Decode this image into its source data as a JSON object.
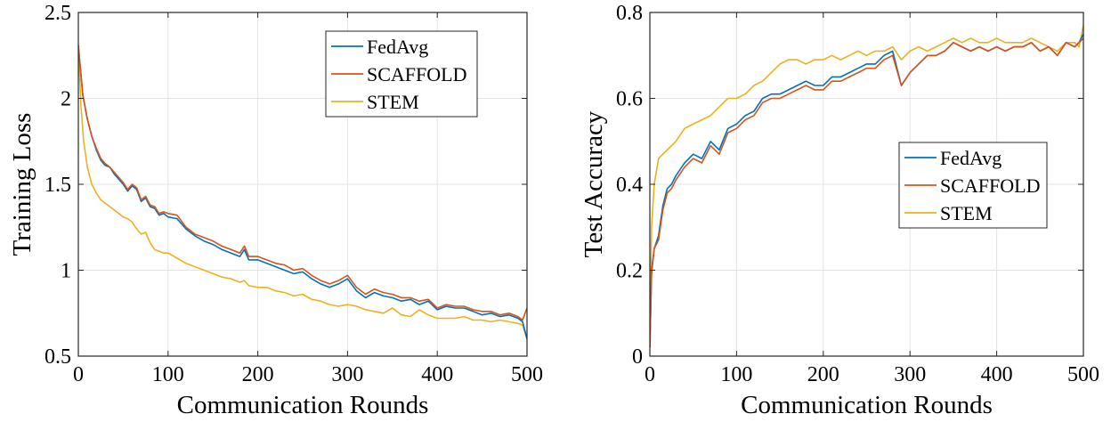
{
  "chart_data": [
    {
      "type": "line",
      "title": "",
      "xlabel": "Communication Rounds",
      "ylabel": "Training Loss",
      "xlim": [
        0,
        500
      ],
      "ylim": [
        0.5,
        2.5
      ],
      "xticks": [
        0,
        100,
        200,
        300,
        400,
        500
      ],
      "yticks": [
        0.5,
        1,
        1.5,
        2,
        2.5
      ],
      "xtick_labels": [
        "0",
        "100",
        "200",
        "300",
        "400",
        "500"
      ],
      "ytick_labels": [
        "0.5",
        "1",
        "1.5",
        "2",
        "2.5"
      ],
      "grid": true,
      "legend_position": "top-right",
      "series": [
        {
          "name": "FedAvg",
          "color": "#0072BD",
          "x": [
            0,
            5,
            10,
            15,
            20,
            25,
            30,
            35,
            40,
            45,
            50,
            55,
            60,
            65,
            70,
            75,
            80,
            85,
            90,
            95,
            100,
            110,
            120,
            130,
            140,
            150,
            160,
            170,
            180,
            185,
            190,
            200,
            210,
            220,
            230,
            240,
            250,
            260,
            270,
            280,
            290,
            300,
            310,
            320,
            330,
            340,
            350,
            360,
            370,
            380,
            390,
            400,
            410,
            420,
            430,
            440,
            450,
            460,
            470,
            480,
            490,
            495,
            500
          ],
          "values": [
            2.3,
            2.02,
            1.88,
            1.78,
            1.7,
            1.64,
            1.61,
            1.6,
            1.56,
            1.53,
            1.5,
            1.46,
            1.49,
            1.47,
            1.4,
            1.42,
            1.37,
            1.36,
            1.32,
            1.33,
            1.31,
            1.3,
            1.24,
            1.2,
            1.17,
            1.15,
            1.12,
            1.1,
            1.08,
            1.12,
            1.06,
            1.06,
            1.04,
            1.02,
            1.0,
            0.98,
            0.99,
            0.95,
            0.92,
            0.9,
            0.92,
            0.95,
            0.88,
            0.84,
            0.87,
            0.85,
            0.84,
            0.82,
            0.83,
            0.8,
            0.82,
            0.77,
            0.79,
            0.78,
            0.78,
            0.76,
            0.74,
            0.75,
            0.73,
            0.74,
            0.72,
            0.7,
            0.6
          ]
        },
        {
          "name": "SCAFFOLD",
          "color": "#D95319",
          "x": [
            0,
            5,
            10,
            15,
            20,
            25,
            30,
            35,
            40,
            45,
            50,
            55,
            60,
            65,
            70,
            75,
            80,
            85,
            90,
            95,
            100,
            110,
            120,
            130,
            140,
            150,
            160,
            170,
            180,
            185,
            190,
            200,
            210,
            220,
            230,
            240,
            250,
            260,
            270,
            280,
            290,
            300,
            310,
            320,
            330,
            340,
            350,
            360,
            370,
            380,
            390,
            400,
            410,
            420,
            430,
            440,
            450,
            460,
            470,
            480,
            490,
            495,
            500
          ],
          "values": [
            2.31,
            2.02,
            1.88,
            1.78,
            1.71,
            1.65,
            1.62,
            1.6,
            1.57,
            1.54,
            1.51,
            1.47,
            1.5,
            1.48,
            1.41,
            1.43,
            1.38,
            1.37,
            1.33,
            1.34,
            1.33,
            1.32,
            1.25,
            1.21,
            1.19,
            1.17,
            1.14,
            1.12,
            1.1,
            1.14,
            1.08,
            1.08,
            1.06,
            1.04,
            1.03,
            1.0,
            1.01,
            0.97,
            0.94,
            0.92,
            0.94,
            0.97,
            0.9,
            0.86,
            0.89,
            0.87,
            0.86,
            0.84,
            0.84,
            0.82,
            0.83,
            0.78,
            0.8,
            0.79,
            0.79,
            0.77,
            0.76,
            0.76,
            0.74,
            0.75,
            0.73,
            0.71,
            0.78
          ]
        },
        {
          "name": "STEM",
          "color": "#EDB120",
          "x": [
            0,
            3,
            6,
            10,
            15,
            20,
            25,
            30,
            35,
            40,
            45,
            50,
            55,
            60,
            65,
            70,
            75,
            80,
            85,
            90,
            95,
            100,
            110,
            120,
            130,
            140,
            150,
            160,
            170,
            180,
            185,
            190,
            200,
            210,
            220,
            230,
            240,
            250,
            260,
            270,
            280,
            290,
            300,
            310,
            320,
            330,
            340,
            350,
            360,
            370,
            380,
            390,
            400,
            410,
            420,
            430,
            440,
            450,
            460,
            470,
            480,
            490,
            495,
            500
          ],
          "values": [
            2.3,
            1.95,
            1.75,
            1.6,
            1.5,
            1.45,
            1.41,
            1.39,
            1.37,
            1.35,
            1.33,
            1.31,
            1.3,
            1.28,
            1.24,
            1.21,
            1.22,
            1.16,
            1.12,
            1.11,
            1.1,
            1.1,
            1.07,
            1.04,
            1.02,
            1.0,
            0.98,
            0.96,
            0.95,
            0.93,
            0.94,
            0.91,
            0.9,
            0.9,
            0.88,
            0.87,
            0.85,
            0.86,
            0.83,
            0.82,
            0.8,
            0.79,
            0.8,
            0.79,
            0.77,
            0.76,
            0.75,
            0.78,
            0.74,
            0.73,
            0.77,
            0.74,
            0.72,
            0.72,
            0.72,
            0.73,
            0.71,
            0.71,
            0.7,
            0.71,
            0.7,
            0.69,
            0.68,
            0.6
          ]
        }
      ]
    },
    {
      "type": "line",
      "title": "",
      "xlabel": "Communication Rounds",
      "ylabel": "Test Accuracy",
      "xlim": [
        0,
        500
      ],
      "ylim": [
        0,
        0.8
      ],
      "xticks": [
        0,
        100,
        200,
        300,
        400,
        500
      ],
      "yticks": [
        0,
        0.2,
        0.4,
        0.6,
        0.8
      ],
      "xtick_labels": [
        "0",
        "100",
        "200",
        "300",
        "400",
        "500"
      ],
      "ytick_labels": [
        "0",
        "0.2",
        "0.4",
        "0.6",
        "0.8"
      ],
      "grid": true,
      "legend_position": "center-right",
      "series": [
        {
          "name": "FedAvg",
          "color": "#0072BD",
          "x": [
            0,
            2,
            5,
            10,
            15,
            20,
            25,
            30,
            40,
            50,
            60,
            70,
            80,
            90,
            100,
            110,
            120,
            130,
            140,
            150,
            160,
            170,
            180,
            190,
            200,
            210,
            220,
            230,
            240,
            250,
            260,
            270,
            280,
            290,
            300,
            310,
            320,
            330,
            340,
            350,
            360,
            370,
            380,
            390,
            400,
            410,
            420,
            430,
            440,
            450,
            460,
            470,
            480,
            490,
            495,
            500
          ],
          "values": [
            0.02,
            0.2,
            0.25,
            0.28,
            0.35,
            0.39,
            0.4,
            0.42,
            0.45,
            0.47,
            0.46,
            0.5,
            0.48,
            0.53,
            0.54,
            0.56,
            0.57,
            0.6,
            0.61,
            0.61,
            0.62,
            0.63,
            0.64,
            0.63,
            0.63,
            0.65,
            0.65,
            0.66,
            0.67,
            0.68,
            0.68,
            0.7,
            0.71,
            0.63,
            0.66,
            0.68,
            0.7,
            0.7,
            0.71,
            0.73,
            0.72,
            0.71,
            0.72,
            0.71,
            0.72,
            0.71,
            0.72,
            0.72,
            0.73,
            0.71,
            0.72,
            0.7,
            0.73,
            0.72,
            0.73,
            0.75
          ]
        },
        {
          "name": "SCAFFOLD",
          "color": "#D95319",
          "x": [
            0,
            2,
            5,
            10,
            15,
            20,
            25,
            30,
            40,
            50,
            60,
            70,
            80,
            90,
            100,
            110,
            120,
            130,
            140,
            150,
            160,
            170,
            180,
            190,
            200,
            210,
            220,
            230,
            240,
            250,
            260,
            270,
            280,
            290,
            300,
            310,
            320,
            330,
            340,
            350,
            360,
            370,
            380,
            390,
            400,
            410,
            420,
            430,
            440,
            450,
            460,
            470,
            480,
            490,
            495,
            500
          ],
          "values": [
            0.02,
            0.19,
            0.25,
            0.27,
            0.34,
            0.38,
            0.39,
            0.41,
            0.44,
            0.46,
            0.45,
            0.49,
            0.47,
            0.52,
            0.53,
            0.55,
            0.56,
            0.59,
            0.6,
            0.6,
            0.61,
            0.62,
            0.63,
            0.62,
            0.62,
            0.64,
            0.64,
            0.65,
            0.66,
            0.67,
            0.67,
            0.69,
            0.7,
            0.63,
            0.66,
            0.68,
            0.7,
            0.7,
            0.71,
            0.73,
            0.72,
            0.71,
            0.72,
            0.71,
            0.72,
            0.71,
            0.72,
            0.72,
            0.73,
            0.71,
            0.72,
            0.7,
            0.73,
            0.72,
            0.73,
            0.74
          ]
        },
        {
          "name": "STEM",
          "color": "#EDB120",
          "x": [
            0,
            2,
            5,
            10,
            15,
            20,
            25,
            30,
            40,
            50,
            60,
            70,
            80,
            90,
            100,
            110,
            120,
            130,
            140,
            150,
            160,
            170,
            180,
            190,
            200,
            210,
            220,
            230,
            240,
            250,
            260,
            270,
            280,
            290,
            300,
            310,
            320,
            330,
            340,
            350,
            360,
            370,
            380,
            390,
            400,
            410,
            420,
            430,
            440,
            450,
            460,
            470,
            480,
            490,
            495,
            500
          ],
          "values": [
            0.05,
            0.3,
            0.4,
            0.46,
            0.47,
            0.48,
            0.49,
            0.5,
            0.53,
            0.54,
            0.55,
            0.56,
            0.58,
            0.6,
            0.6,
            0.61,
            0.63,
            0.64,
            0.66,
            0.68,
            0.69,
            0.69,
            0.68,
            0.69,
            0.69,
            0.7,
            0.69,
            0.7,
            0.71,
            0.7,
            0.71,
            0.71,
            0.72,
            0.69,
            0.71,
            0.72,
            0.71,
            0.72,
            0.73,
            0.74,
            0.73,
            0.74,
            0.73,
            0.73,
            0.74,
            0.73,
            0.73,
            0.73,
            0.74,
            0.73,
            0.72,
            0.71,
            0.73,
            0.73,
            0.72,
            0.77
          ]
        }
      ]
    }
  ]
}
